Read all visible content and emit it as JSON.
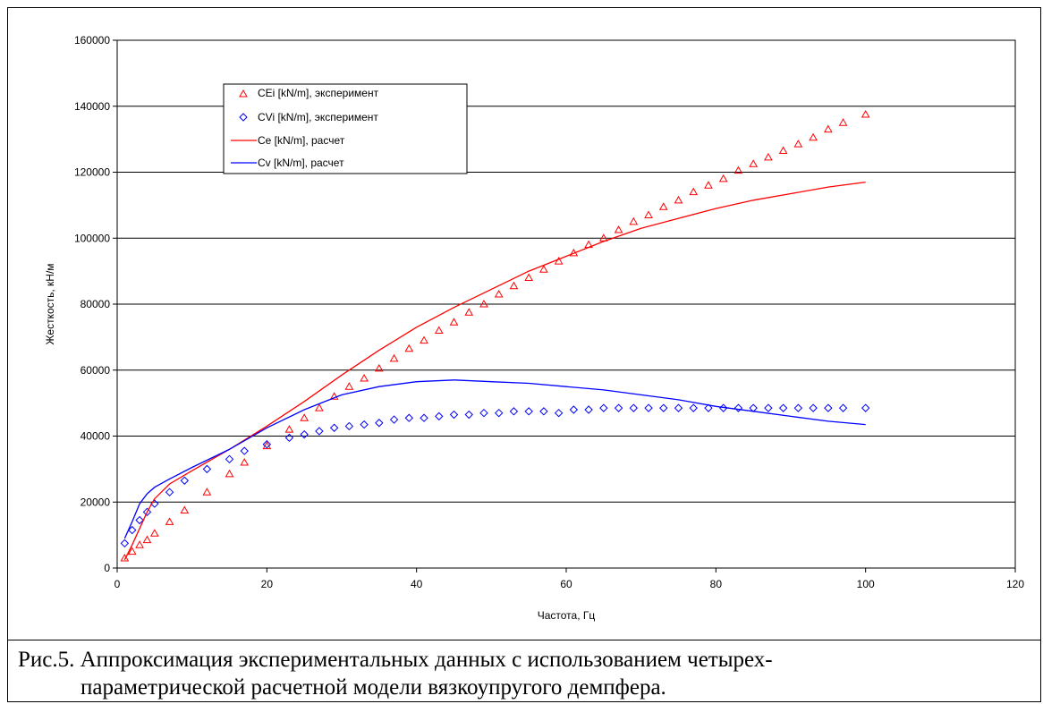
{
  "chart_data": {
    "type": "scatter",
    "title": "",
    "xlabel": "Частота, Гц",
    "ylabel": "Жесткость, кН/м",
    "xlim": [
      0,
      120
    ],
    "ylim": [
      0,
      160000
    ],
    "xticks": [
      0,
      20,
      40,
      60,
      80,
      100,
      120
    ],
    "yticks": [
      0,
      20000,
      40000,
      60000,
      80000,
      100000,
      120000,
      140000,
      160000
    ],
    "grid": "horizontal",
    "legend_position": "top-left",
    "colors": {
      "red": "#ff0000",
      "blue": "#0000ff"
    },
    "series": [
      {
        "name": "CEi [kN/m], эксперимент",
        "kind": "markers",
        "marker": "triangle",
        "color": "#ff0000",
        "points": [
          [
            1,
            3000
          ],
          [
            2,
            5000
          ],
          [
            3,
            7000
          ],
          [
            4,
            8500
          ],
          [
            5,
            10500
          ],
          [
            7,
            14000
          ],
          [
            9,
            17500
          ],
          [
            12,
            23000
          ],
          [
            15,
            28500
          ],
          [
            17,
            32000
          ],
          [
            20,
            37000
          ],
          [
            23,
            42000
          ],
          [
            25,
            45500
          ],
          [
            27,
            48500
          ],
          [
            29,
            52000
          ],
          [
            31,
            55000
          ],
          [
            33,
            57500
          ],
          [
            35,
            60500
          ],
          [
            37,
            63500
          ],
          [
            39,
            66500
          ],
          [
            41,
            69000
          ],
          [
            43,
            72000
          ],
          [
            45,
            74500
          ],
          [
            47,
            77500
          ],
          [
            49,
            80000
          ],
          [
            51,
            83000
          ],
          [
            53,
            85500
          ],
          [
            55,
            88000
          ],
          [
            57,
            90500
          ],
          [
            59,
            93000
          ],
          [
            61,
            95500
          ],
          [
            63,
            98000
          ],
          [
            65,
            100000
          ],
          [
            67,
            102500
          ],
          [
            69,
            105000
          ],
          [
            71,
            107000
          ],
          [
            73,
            109500
          ],
          [
            75,
            111500
          ],
          [
            77,
            114000
          ],
          [
            79,
            116000
          ],
          [
            81,
            118000
          ],
          [
            83,
            120500
          ],
          [
            85,
            122500
          ],
          [
            87,
            124500
          ],
          [
            89,
            126500
          ],
          [
            91,
            128500
          ],
          [
            93,
            130500
          ],
          [
            95,
            133000
          ],
          [
            97,
            135000
          ],
          [
            100,
            137500
          ]
        ]
      },
      {
        "name": "CVi [kN/m], эксперимент",
        "kind": "markers",
        "marker": "diamond",
        "color": "#0000ff",
        "points": [
          [
            1,
            7500
          ],
          [
            2,
            11500
          ],
          [
            3,
            14500
          ],
          [
            4,
            17000
          ],
          [
            5,
            19500
          ],
          [
            7,
            23000
          ],
          [
            9,
            26500
          ],
          [
            12,
            30000
          ],
          [
            15,
            33000
          ],
          [
            17,
            35500
          ],
          [
            20,
            37500
          ],
          [
            23,
            39500
          ],
          [
            25,
            40500
          ],
          [
            27,
            41500
          ],
          [
            29,
            42500
          ],
          [
            31,
            43000
          ],
          [
            33,
            43500
          ],
          [
            35,
            44000
          ],
          [
            37,
            45000
          ],
          [
            39,
            45500
          ],
          [
            41,
            45500
          ],
          [
            43,
            46000
          ],
          [
            45,
            46500
          ],
          [
            47,
            46500
          ],
          [
            49,
            47000
          ],
          [
            51,
            47000
          ],
          [
            53,
            47500
          ],
          [
            55,
            47500
          ],
          [
            57,
            47500
          ],
          [
            59,
            47000
          ],
          [
            61,
            48000
          ],
          [
            63,
            48000
          ],
          [
            65,
            48500
          ],
          [
            67,
            48500
          ],
          [
            69,
            48500
          ],
          [
            71,
            48500
          ],
          [
            73,
            48500
          ],
          [
            75,
            48500
          ],
          [
            77,
            48500
          ],
          [
            79,
            48500
          ],
          [
            81,
            48500
          ],
          [
            83,
            48500
          ],
          [
            85,
            48500
          ],
          [
            87,
            48500
          ],
          [
            89,
            48500
          ],
          [
            91,
            48500
          ],
          [
            93,
            48500
          ],
          [
            95,
            48500
          ],
          [
            97,
            48500
          ],
          [
            100,
            48500
          ]
        ]
      },
      {
        "name": "Ce [kN/m], расчет",
        "kind": "line",
        "color": "#ff0000",
        "points": [
          [
            1,
            2500
          ],
          [
            2,
            7000
          ],
          [
            3,
            12000
          ],
          [
            4,
            17000
          ],
          [
            5,
            21000
          ],
          [
            7,
            25500
          ],
          [
            10,
            29500
          ],
          [
            15,
            36000
          ],
          [
            20,
            43000
          ],
          [
            25,
            50500
          ],
          [
            30,
            58500
          ],
          [
            35,
            66000
          ],
          [
            40,
            73000
          ],
          [
            45,
            79000
          ],
          [
            50,
            84500
          ],
          [
            55,
            90000
          ],
          [
            60,
            94500
          ],
          [
            65,
            99000
          ],
          [
            70,
            103000
          ],
          [
            75,
            106000
          ],
          [
            80,
            109000
          ],
          [
            85,
            111500
          ],
          [
            90,
            113500
          ],
          [
            95,
            115500
          ],
          [
            100,
            117000
          ]
        ]
      },
      {
        "name": "Cv [kN/m], расчет",
        "kind": "line",
        "color": "#0000ff",
        "points": [
          [
            1,
            9000
          ],
          [
            2,
            14000
          ],
          [
            3,
            19500
          ],
          [
            4,
            22500
          ],
          [
            5,
            24500
          ],
          [
            7,
            27000
          ],
          [
            10,
            30500
          ],
          [
            15,
            36000
          ],
          [
            20,
            42500
          ],
          [
            25,
            48000
          ],
          [
            30,
            52500
          ],
          [
            35,
            55000
          ],
          [
            40,
            56500
          ],
          [
            45,
            57000
          ],
          [
            50,
            56500
          ],
          [
            55,
            56000
          ],
          [
            60,
            55000
          ],
          [
            65,
            54000
          ],
          [
            70,
            52500
          ],
          [
            75,
            51000
          ],
          [
            80,
            49000
          ],
          [
            85,
            47500
          ],
          [
            90,
            46000
          ],
          [
            95,
            44500
          ],
          [
            100,
            43500
          ]
        ]
      }
    ]
  },
  "caption": {
    "line1": "Рис.5. Аппроксимация экспериментальных данных с использованием четырех-",
    "line2": "параметрической расчетной модели вязкоупругого демпфера."
  }
}
